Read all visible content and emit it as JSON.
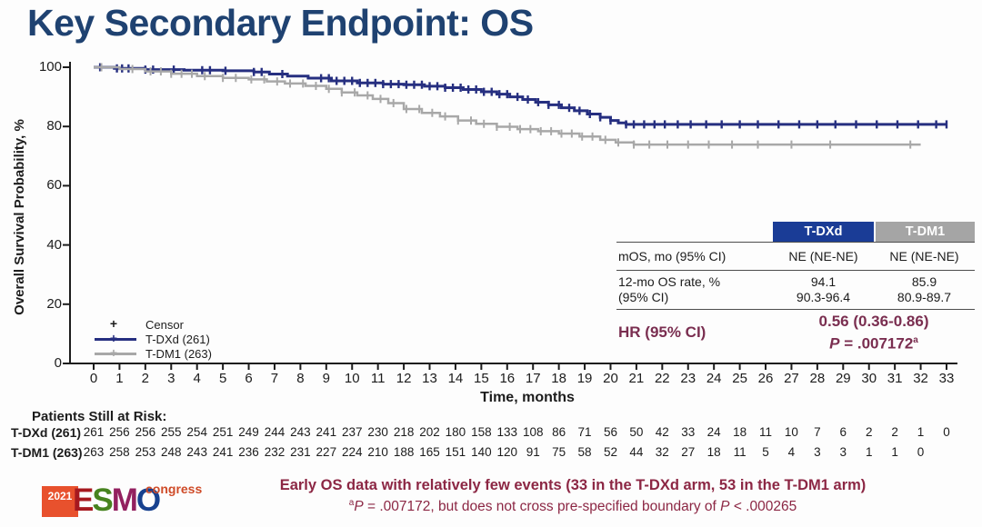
{
  "title": "Key Secondary Endpoint: OS",
  "chart_data": {
    "type": "line",
    "subtype": "kaplan-meier-step",
    "xlabel": "Time, months",
    "ylabel": "Overall Survival Probability, %",
    "xlim": [
      0,
      33
    ],
    "ylim": [
      0,
      100
    ],
    "xticks": [
      0,
      1,
      2,
      3,
      4,
      5,
      6,
      7,
      8,
      9,
      10,
      11,
      12,
      13,
      14,
      15,
      16,
      17,
      18,
      19,
      20,
      21,
      22,
      23,
      24,
      25,
      26,
      27,
      28,
      29,
      30,
      31,
      32,
      33
    ],
    "yticks": [
      0,
      20,
      40,
      60,
      80,
      100
    ],
    "grid": false,
    "legend_position": "lower-left-inside",
    "legend": [
      "Censor",
      "T-DXd (261)",
      "T-DM1 (263)"
    ],
    "series": [
      {
        "name": "T-DXd (261)",
        "color": "#262f80",
        "points": [
          [
            0,
            100
          ],
          [
            0.8,
            99.6
          ],
          [
            2,
            99.2
          ],
          [
            3.5,
            99.0
          ],
          [
            5,
            98.8
          ],
          [
            6.2,
            98.4
          ],
          [
            6.8,
            97.7
          ],
          [
            7.5,
            97.0
          ],
          [
            8.3,
            96.3
          ],
          [
            9.2,
            95.4
          ],
          [
            10.2,
            94.7
          ],
          [
            11.2,
            94.3
          ],
          [
            12,
            94.1
          ],
          [
            12.8,
            93.6
          ],
          [
            13.6,
            93.1
          ],
          [
            14.3,
            92.5
          ],
          [
            15,
            91.7
          ],
          [
            15.6,
            90.9
          ],
          [
            16.1,
            90.0
          ],
          [
            16.6,
            89.1
          ],
          [
            17.1,
            88.2
          ],
          [
            17.6,
            87.3
          ],
          [
            18.1,
            86.3
          ],
          [
            18.6,
            85.3
          ],
          [
            19.1,
            84.2
          ],
          [
            19.6,
            83.1
          ],
          [
            20.0,
            82.0
          ],
          [
            20.3,
            81.2
          ],
          [
            20.6,
            80.7
          ],
          [
            33,
            80.7
          ]
        ],
        "censor_marks": [
          0.25,
          0.9,
          1.1,
          1.35,
          2.0,
          2.3,
          3.1,
          4.2,
          4.5,
          5.1,
          6.2,
          6.5,
          7.3,
          8.8,
          9.1,
          9.4,
          9.7,
          10.0,
          10.3,
          10.6,
          10.9,
          11.2,
          11.5,
          11.8,
          12.1,
          12.4,
          12.7,
          13.0,
          13.3,
          13.6,
          13.9,
          14.2,
          14.5,
          14.8,
          15.1,
          15.4,
          15.7,
          16.0,
          16.4,
          16.8,
          17.2,
          17.6,
          18.0,
          18.4,
          18.8,
          19.2,
          19.6,
          20.0,
          20.6,
          20.9,
          21.3,
          21.7,
          22.1,
          22.6,
          23.1,
          23.7,
          24.3,
          25.0,
          25.7,
          26.5,
          27.3,
          28.0,
          28.7,
          29.5,
          30.3,
          31.1,
          31.9,
          32.6,
          33.0
        ]
      },
      {
        "name": "T-DM1 (263)",
        "color": "#a8a8a8",
        "points": [
          [
            0,
            100
          ],
          [
            1,
            99.4
          ],
          [
            2,
            98.6
          ],
          [
            3,
            97.8
          ],
          [
            4,
            97.0
          ],
          [
            5,
            96.4
          ],
          [
            6,
            95.9
          ],
          [
            6.7,
            95.2
          ],
          [
            7.4,
            94.5
          ],
          [
            8.2,
            93.7
          ],
          [
            9,
            92.7
          ],
          [
            9.6,
            91.5
          ],
          [
            10.2,
            90.5
          ],
          [
            10.8,
            89.3
          ],
          [
            11.4,
            87.9
          ],
          [
            12,
            85.9
          ],
          [
            12.7,
            84.6
          ],
          [
            13.4,
            83.4
          ],
          [
            14.1,
            82.0
          ],
          [
            14.8,
            80.9
          ],
          [
            15.6,
            79.9
          ],
          [
            16.4,
            79.1
          ],
          [
            17.2,
            78.4
          ],
          [
            18,
            77.6
          ],
          [
            18.8,
            76.6
          ],
          [
            19.6,
            75.5
          ],
          [
            20.2,
            74.6
          ],
          [
            20.9,
            73.9
          ],
          [
            32,
            73.9
          ]
        ],
        "censor_marks": [
          0.3,
          1.5,
          2.2,
          2.6,
          3.0,
          3.4,
          3.8,
          4.3,
          5.0,
          5.5,
          6.1,
          6.6,
          7.1,
          7.6,
          8.1,
          8.6,
          9.1,
          9.6,
          10.1,
          10.6,
          11.1,
          11.6,
          12.1,
          12.6,
          13.1,
          13.6,
          14.1,
          14.6,
          15.1,
          15.6,
          16.1,
          16.5,
          16.9,
          17.3,
          17.7,
          18.1,
          18.5,
          18.9,
          19.3,
          19.8,
          20.3,
          20.9,
          21.5,
          22.2,
          23.0,
          23.8,
          24.7,
          25.7,
          27.0,
          28.5,
          31.6
        ]
      }
    ]
  },
  "legend": {
    "censor": "Censor",
    "tdxd": "T-DXd (261)",
    "tdm1": "T-DM1 (263)",
    "censor_color": "#1c1c1c",
    "tdxd_color": "#262f80",
    "tdm1_color": "#a8a8a8"
  },
  "summary_table": {
    "headers": [
      "T-DXd",
      "T-DM1"
    ],
    "header_colors": [
      "#1a3c96",
      "#a5a5a5"
    ],
    "rows": [
      {
        "label": "mOS, mo (95% CI)",
        "values": [
          "NE (NE-NE)",
          "NE (NE-NE)"
        ]
      },
      {
        "label": "12-mo OS rate, %",
        "label_line2": "(95% CI)",
        "values": [
          "94.1",
          "85.9"
        ],
        "values_line2": [
          "90.3-96.4",
          "80.9-89.7"
        ]
      }
    ],
    "hr": {
      "label": "HR (95% CI)",
      "line1": "0.56 (0.36-0.86)",
      "line2_segments": [
        {
          "t": "P",
          "i": true
        },
        {
          "t": " = .007172"
        },
        {
          "t": "a",
          "sup": true
        }
      ]
    }
  },
  "risk_table": {
    "heading": "Patients Still at Risk:",
    "rows": [
      {
        "label": "T-DXd (261)",
        "counts": [
          261,
          256,
          256,
          255,
          254,
          251,
          249,
          244,
          243,
          241,
          237,
          230,
          218,
          202,
          180,
          158,
          133,
          108,
          86,
          71,
          56,
          50,
          42,
          33,
          24,
          18,
          11,
          10,
          7,
          6,
          2,
          2,
          1,
          0
        ]
      },
      {
        "label": "T-DM1 (263)",
        "counts": [
          263,
          258,
          253,
          248,
          243,
          241,
          236,
          232,
          231,
          227,
          224,
          210,
          188,
          165,
          151,
          140,
          120,
          91,
          75,
          58,
          52,
          44,
          32,
          27,
          18,
          11,
          5,
          4,
          3,
          3,
          1,
          1,
          0
        ]
      }
    ]
  },
  "footer": {
    "line1": "Early OS data with relatively few events (33 in the T-DXd arm, 53 in the T-DM1 arm)",
    "line2_segments": [
      {
        "t": "a",
        "sup": true
      },
      {
        "t": "P",
        "i": true
      },
      {
        "t": " = .007172, but does not cross pre-specified boundary of "
      },
      {
        "t": "P",
        "i": true
      },
      {
        "t": " < .000265"
      }
    ],
    "logo": {
      "year": "2021",
      "letters": [
        {
          "ch": "E",
          "color": "#a6191f"
        },
        {
          "ch": "S",
          "color": "#47831f"
        },
        {
          "ch": "M",
          "color": "#93205f"
        },
        {
          "ch": "O",
          "color": "#17418f"
        }
      ],
      "congress": "congress"
    }
  }
}
